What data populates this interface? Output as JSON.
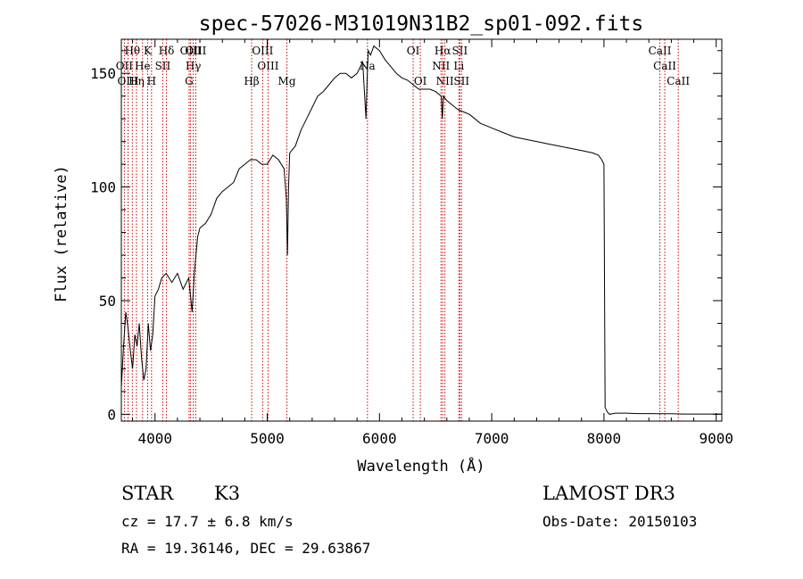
{
  "chart_data": {
    "type": "line",
    "title": "spec-57026-M31019N31B2_sp01-092.fits",
    "xlabel": "Wavelength (Å)",
    "ylabel": "Flux (relative)",
    "xlim": [
      3700,
      9050
    ],
    "ylim": [
      -3,
      165
    ],
    "xticks": [
      4000,
      5000,
      6000,
      7000,
      8000,
      9000
    ],
    "xtick_labels": [
      "4000",
      "5000",
      "6000",
      "7000",
      "8000",
      "9000"
    ],
    "yticks": [
      0,
      50,
      100,
      150
    ],
    "ytick_labels": [
      "0",
      "50",
      "100",
      "150"
    ],
    "series": [
      {
        "name": "flux",
        "x": [
          3700,
          3720,
          3740,
          3760,
          3780,
          3800,
          3820,
          3840,
          3860,
          3880,
          3900,
          3920,
          3940,
          3960,
          3980,
          4000,
          4030,
          4060,
          4100,
          4150,
          4200,
          4250,
          4300,
          4330,
          4350,
          4380,
          4400,
          4450,
          4500,
          4550,
          4600,
          4650,
          4700,
          4750,
          4800,
          4850,
          4900,
          4950,
          5000,
          5050,
          5100,
          5150,
          5170,
          5180,
          5190,
          5200,
          5250,
          5300,
          5350,
          5400,
          5450,
          5500,
          5550,
          5600,
          5650,
          5700,
          5750,
          5800,
          5850,
          5880,
          5890,
          5900,
          5920,
          5950,
          6000,
          6050,
          6100,
          6150,
          6200,
          6250,
          6300,
          6350,
          6400,
          6450,
          6500,
          6550,
          6560,
          6570,
          6600,
          6650,
          6700,
          6750,
          6800,
          6850,
          6900,
          6950,
          7000,
          7100,
          7200,
          7300,
          7400,
          7500,
          7600,
          7700,
          7800,
          7900,
          7950,
          7980,
          8000,
          8005,
          8010,
          8020,
          8030,
          8050,
          8100,
          8200,
          8300,
          8400,
          8500,
          8600,
          8700,
          8800,
          8900,
          9000,
          9050
        ],
        "y": [
          12,
          30,
          45,
          38,
          28,
          20,
          35,
          30,
          40,
          25,
          15,
          20,
          40,
          28,
          35,
          52,
          55,
          60,
          62,
          58,
          62,
          55,
          60,
          45,
          62,
          78,
          82,
          84,
          88,
          95,
          98,
          100,
          102,
          108,
          110,
          112,
          112,
          110,
          110,
          114,
          112,
          108,
          95,
          70,
          100,
          115,
          118,
          125,
          130,
          135,
          140,
          142,
          145,
          148,
          150,
          150,
          148,
          150,
          155,
          130,
          148,
          160,
          158,
          162,
          160,
          156,
          153,
          150,
          148,
          147,
          145,
          143,
          143,
          143,
          142,
          140,
          130,
          140,
          138,
          136,
          134,
          133,
          132,
          130,
          128,
          127,
          126,
          124,
          122,
          121,
          120,
          119,
          118,
          117,
          116,
          115,
          114,
          112,
          110,
          60,
          3,
          2,
          1,
          0,
          0.5,
          0.5,
          0.3,
          0.3,
          0.2,
          0.2,
          0.1,
          0.1,
          0.1,
          0.1,
          0.1
        ]
      }
    ],
    "lines": [
      {
        "label": "Hθ",
        "x": 3798,
        "row": 1
      },
      {
        "label": "OII",
        "x": 3727,
        "row": 2
      },
      {
        "label": "OIII",
        "x": 3760,
        "row": 3
      },
      {
        "label": "Hη",
        "x": 3835,
        "row": 3
      },
      {
        "label": "He",
        "x": 3889,
        "row": 2
      },
      {
        "label": "K",
        "x": 3934,
        "row": 1
      },
      {
        "label": "H",
        "x": 3969,
        "row": 3
      },
      {
        "label": "SII",
        "x": 4069,
        "row": 2
      },
      {
        "label": "Hδ",
        "x": 4102,
        "row": 1
      },
      {
        "label": "OIII",
        "x": 4317,
        "row": 1
      },
      {
        "label": "Hγ",
        "x": 4341,
        "row": 2
      },
      {
        "label": "G",
        "x": 4304,
        "row": 3
      },
      {
        "label": "OIII",
        "x": 4363,
        "row": 1
      },
      {
        "label": "Hβ",
        "x": 4861,
        "row": 3
      },
      {
        "label": "OIII",
        "x": 4959,
        "row": 1
      },
      {
        "label": "OIII",
        "x": 5007,
        "row": 2
      },
      {
        "label": "Mg",
        "x": 5175,
        "row": 3
      },
      {
        "label": "Na",
        "x": 5893,
        "row": 2
      },
      {
        "label": "OI",
        "x": 6300,
        "row": 1
      },
      {
        "label": "OI",
        "x": 6364,
        "row": 3
      },
      {
        "label": "NII",
        "x": 6548,
        "row": 2
      },
      {
        "label": "Hα",
        "x": 6563,
        "row": 1
      },
      {
        "label": "NII",
        "x": 6583,
        "row": 3
      },
      {
        "label": "SII",
        "x": 6716,
        "row": 1
      },
      {
        "label": "Li",
        "x": 6707,
        "row": 2
      },
      {
        "label": "SII",
        "x": 6731,
        "row": 3
      },
      {
        "label": "CaII",
        "x": 8498,
        "row": 1
      },
      {
        "label": "CaII",
        "x": 8542,
        "row": 2
      },
      {
        "label": "CaII",
        "x": 8662,
        "row": 3
      }
    ],
    "grid": false,
    "legend": "none"
  },
  "info": {
    "object_type": "STAR",
    "subclass": "K3",
    "survey": "LAMOST DR3",
    "cz": "cz = 17.7 ± 6.8 km/s",
    "obs_date": "Obs-Date: 20150103",
    "coords": "RA =  19.36146, DEC =  29.63867"
  },
  "colors": {
    "spectrum": "#000000",
    "line_markers": "#cc0000",
    "axes": "#000000"
  }
}
